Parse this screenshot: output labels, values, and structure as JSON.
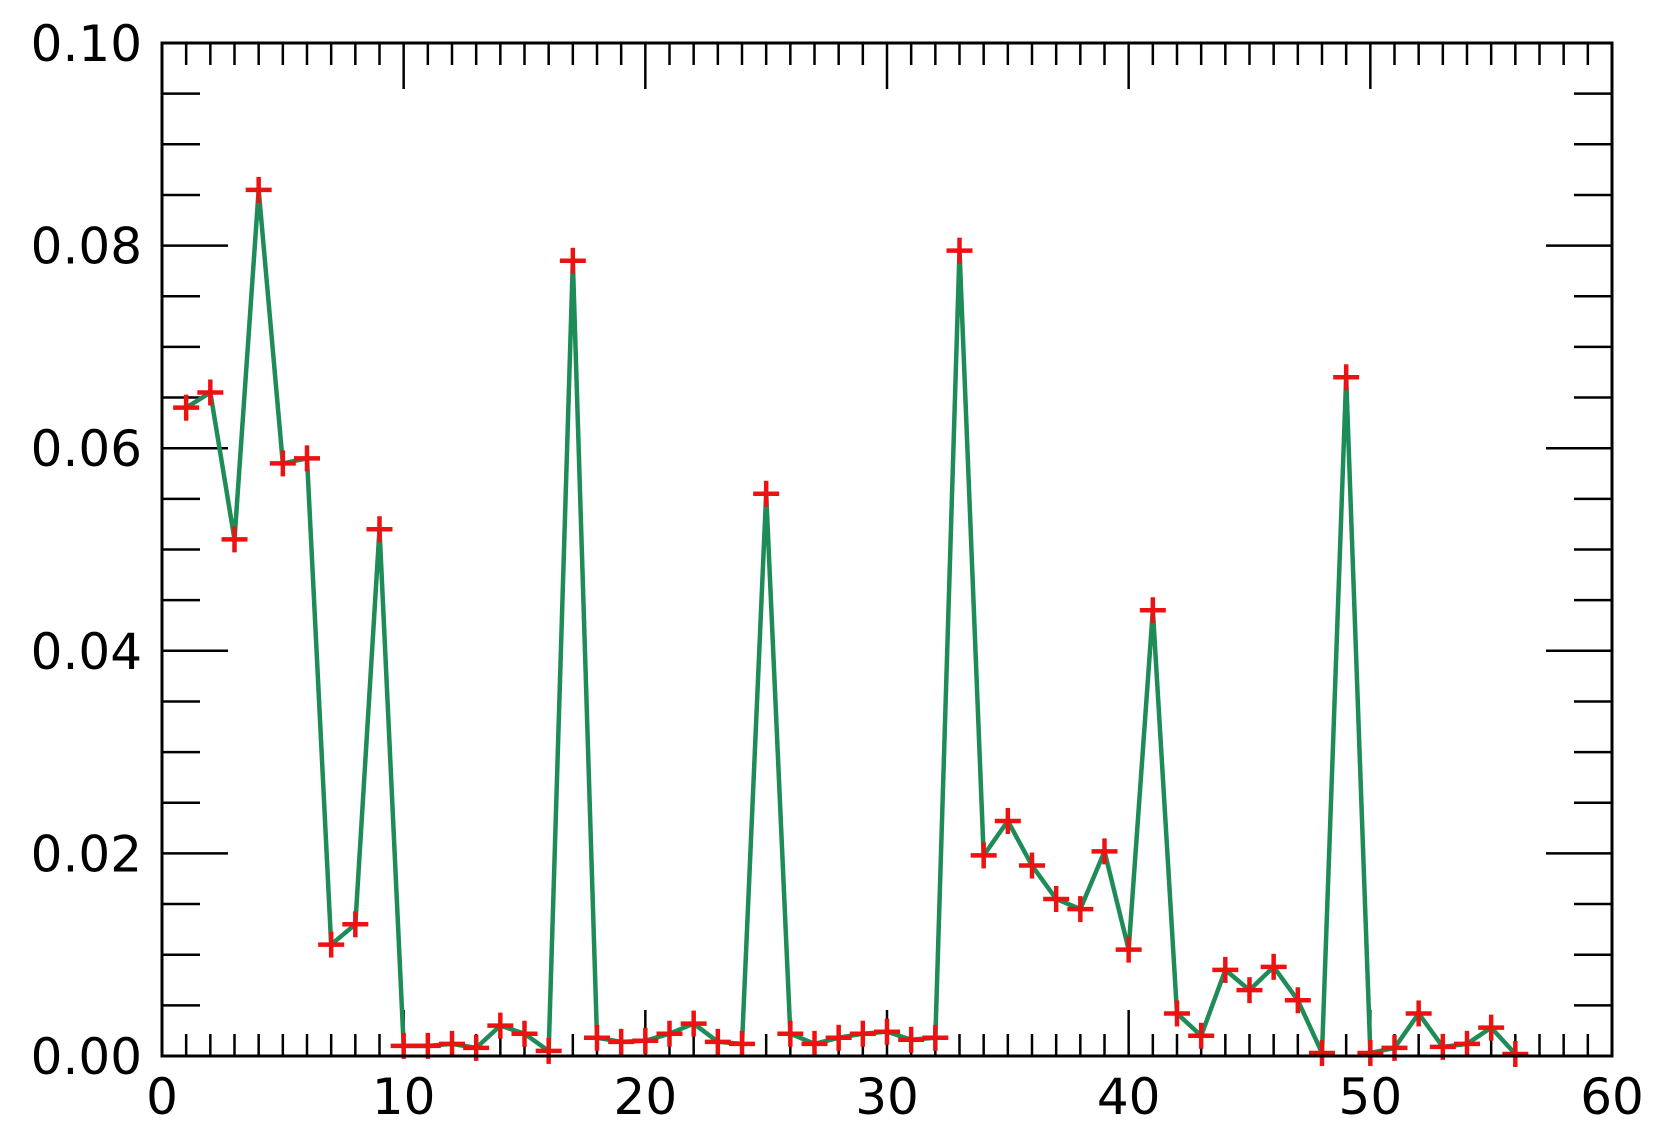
{
  "chart_data": {
    "type": "line",
    "title": "",
    "xlabel": "",
    "ylabel": "",
    "xlim": [
      0,
      60
    ],
    "ylim": [
      0,
      0.1
    ],
    "x_ticks": [
      0,
      10,
      20,
      30,
      40,
      50,
      60
    ],
    "x_tick_labels": [
      "0",
      "10",
      "20",
      "30",
      "40",
      "50",
      "60"
    ],
    "y_ticks": [
      0,
      0.02,
      0.04,
      0.06,
      0.08,
      0.1
    ],
    "y_tick_labels": [
      "0.00",
      "0.02",
      "0.04",
      "0.06",
      "0.08",
      "0.10"
    ],
    "grid": false,
    "legend": "none",
    "line_color": "#1e8c57",
    "marker_color": "#ee1111",
    "marker": "plus",
    "series": [
      {
        "x": [
          1,
          2,
          3,
          4,
          5,
          6,
          7,
          8,
          9,
          10,
          11,
          12,
          13,
          14,
          15,
          16,
          17,
          18,
          19,
          20,
          21,
          22,
          23,
          24,
          25,
          26,
          27,
          28,
          29,
          30,
          31,
          32,
          33,
          34,
          35,
          36,
          37,
          38,
          39,
          40,
          41,
          42,
          43,
          44,
          45,
          46,
          47,
          48,
          49,
          50,
          51,
          52,
          53,
          54,
          55,
          56
        ],
        "values": [
          0.064,
          0.0655,
          0.051,
          0.0855,
          0.0585,
          0.059,
          0.011,
          0.013,
          0.052,
          0.001,
          0.001,
          0.0012,
          0.0008,
          0.003,
          0.0022,
          0.0005,
          0.0785,
          0.0018,
          0.0014,
          0.0015,
          0.0022,
          0.0032,
          0.0014,
          0.0012,
          0.0555,
          0.0022,
          0.0012,
          0.0018,
          0.0022,
          0.0024,
          0.0016,
          0.0018,
          0.0795,
          0.0198,
          0.0232,
          0.0188,
          0.0155,
          0.0145,
          0.0202,
          0.0105,
          0.044,
          0.0042,
          0.002,
          0.0085,
          0.0065,
          0.0088,
          0.0055,
          0.0003,
          0.067,
          0.0003,
          0.0008,
          0.0042,
          0.0009,
          0.0012,
          0.0028,
          0.0002
        ]
      }
    ]
  }
}
